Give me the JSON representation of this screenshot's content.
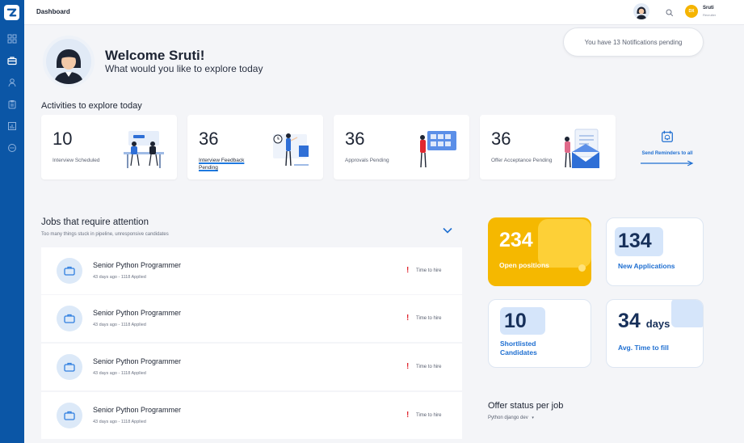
{
  "topbar": {
    "title": "Dashboard",
    "user_initials": "DX",
    "user_name": "Sruti",
    "user_role": "Recruiter"
  },
  "notification": "You have 13 Notifications pending",
  "welcome": {
    "title": "Welcome Sruti!",
    "subtitle": "What would you like to explore today"
  },
  "activities": {
    "heading": "Activities to explore today",
    "cards": [
      {
        "value": "10",
        "label": "Interview Scheduled"
      },
      {
        "value": "36",
        "label": "Interview Feedback Pending"
      },
      {
        "value": "36",
        "label": "Approvals Pending"
      },
      {
        "value": "36",
        "label": "Offer Acceptance Pending"
      }
    ],
    "reminder_label": "Send Reminders to all"
  },
  "jobs": {
    "heading": "Jobs that require attention",
    "subheading": "Too many things stuck in pipeline, unresponsive candidates",
    "rows": [
      {
        "title": "Senior Python Programmer",
        "meta": "43 days ago - 1118 Applied",
        "alert": "!",
        "flag": "Time to hire"
      },
      {
        "title": "Senior Python Programmer",
        "meta": "43 days ago - 1118 Applied",
        "alert": "!",
        "flag": "Time to hire"
      },
      {
        "title": "Senior Python Programmer",
        "meta": "43 days ago - 1118 Applied",
        "alert": "!",
        "flag": "Time to hire"
      },
      {
        "title": "Senior Python Programmer",
        "meta": "43 days ago - 1118 Applied",
        "alert": "!",
        "flag": "Time to hire"
      }
    ]
  },
  "stats": {
    "open_positions": {
      "value": "234",
      "label": "Open positions"
    },
    "new_applications": {
      "value": "134",
      "label": "New Applications"
    },
    "shortlisted": {
      "value": "10",
      "label": "Shortlisted Candidates"
    },
    "time_to_fill": {
      "value": "34",
      "unit": "days",
      "label": "Avg. Time to fill"
    }
  },
  "offer_status": {
    "heading": "Offer status per job",
    "selected_job": "Python django dev"
  },
  "colors": {
    "sidebar": "#0b56a6",
    "accent": "#1f6fd1",
    "yellow": "#f5b800",
    "alert": "#e0262f"
  }
}
